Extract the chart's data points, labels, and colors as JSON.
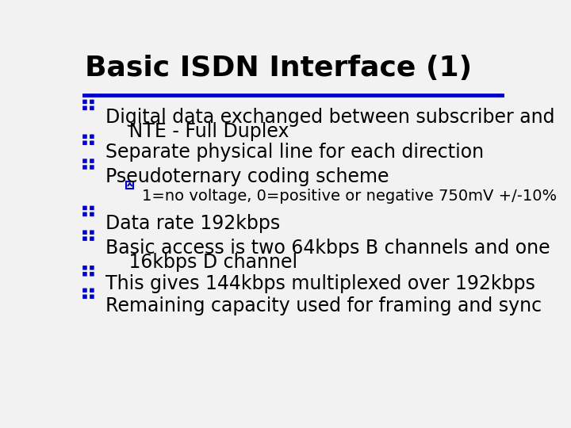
{
  "title": "Basic ISDN Interface (1)",
  "title_color": "#000000",
  "title_fontsize": 26,
  "line_color": "#0000CC",
  "background_color": "#f2f2f2",
  "bullet_color": "#0000CC",
  "sub_bullet_color": "#0000CC",
  "text_color": "#000000",
  "bullet_fontsize": 17,
  "sub_bullet_fontsize": 14,
  "bullets": [
    {
      "line1": "Digital data exchanged between subscriber and",
      "line2": "   NTE - Full Duplex",
      "sub": false
    },
    {
      "line1": "Separate physical line for each direction",
      "line2": null,
      "sub": false
    },
    {
      "line1": "Pseudoternary coding scheme",
      "line2": null,
      "sub": false
    },
    {
      "line1": "1=no voltage, 0=positive or negative 750mV +/-10%",
      "line2": null,
      "sub": true
    },
    {
      "line1": "Data rate 192kbps",
      "line2": null,
      "sub": false
    },
    {
      "line1": "Basic access is two 64kbps B channels and one",
      "line2": "   16kbps D channel",
      "sub": false
    },
    {
      "line1": "This gives 144kbps multiplexed over 192kbps",
      "line2": null,
      "sub": false
    },
    {
      "line1": "Remaining capacity used for framing and sync",
      "line2": null,
      "sub": false
    }
  ]
}
